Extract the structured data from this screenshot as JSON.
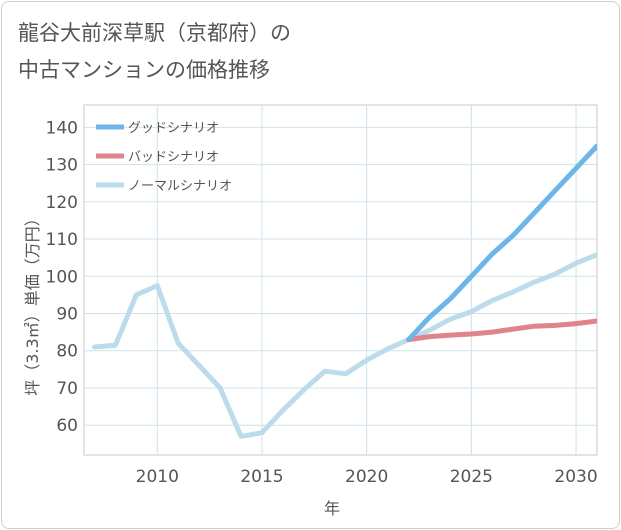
{
  "title_line1": "龍谷大前深草駅（京都府）の",
  "title_line2": "中古マンションの価格推移",
  "chart_data": {
    "type": "line",
    "xlabel": "年",
    "ylabel": "坪（3.3㎡）単価（万円）",
    "xlim": [
      2006.5,
      2031
    ],
    "ylim": [
      52,
      146
    ],
    "xticks": [
      2010,
      2015,
      2020,
      2025,
      2030
    ],
    "yticks": [
      60,
      70,
      80,
      90,
      100,
      110,
      120,
      130,
      140
    ],
    "grid": true,
    "legend_position": "top-left",
    "series": [
      {
        "name": "グッドシナリオ",
        "color": "#6cb6ea",
        "x": [
          2022,
          2023,
          2024,
          2025,
          2026,
          2027,
          2028,
          2029,
          2030,
          2031
        ],
        "y": [
          83,
          89,
          94,
          100,
          106,
          111,
          117,
          123,
          129,
          135
        ]
      },
      {
        "name": "バッドシナリオ",
        "color": "#e0838d",
        "x": [
          2022,
          2023,
          2024,
          2025,
          2026,
          2027,
          2028,
          2029,
          2030,
          2031
        ],
        "y": [
          83,
          83.8,
          84.2,
          84.5,
          85,
          85.8,
          86.6,
          86.8,
          87.3,
          88
        ]
      },
      {
        "name": "ノーマルシナリオ",
        "color": "#bcdcec",
        "x": [
          2007,
          2008,
          2009,
          2010,
          2011,
          2012,
          2013,
          2014,
          2015,
          2016,
          2017,
          2018,
          2019,
          2020,
          2021,
          2022,
          2023,
          2024,
          2025,
          2026,
          2027,
          2028,
          2029,
          2030,
          2031
        ],
        "y": [
          81,
          81.5,
          95,
          97.5,
          82,
          76,
          70,
          57,
          58,
          64,
          69.5,
          74.5,
          73.8,
          77.5,
          80.5,
          83,
          85.5,
          88.5,
          90.5,
          93.5,
          95.8,
          98.4,
          100.6,
          103.5,
          105.8
        ]
      }
    ]
  }
}
